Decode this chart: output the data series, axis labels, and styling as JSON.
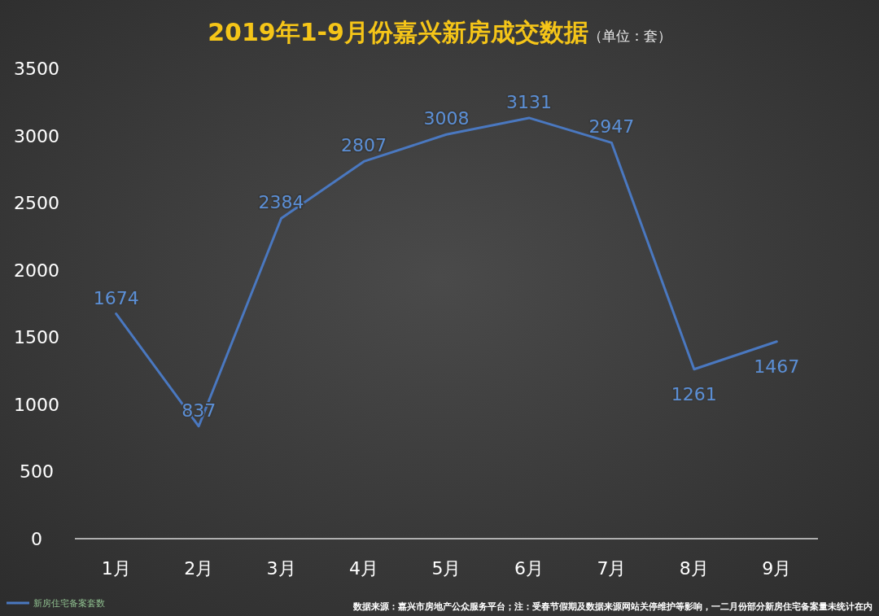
{
  "chart_data": {
    "type": "line",
    "title": "2019年1-9月份嘉兴新房成交数据",
    "subtitle": "（单位：套）",
    "categories": [
      "1月",
      "2月",
      "3月",
      "4月",
      "5月",
      "6月",
      "7月",
      "8月",
      "9月"
    ],
    "series": [
      {
        "name": "新房住宅备案套数",
        "color": "#4a78c0",
        "values": [
          1674,
          837,
          2384,
          2807,
          3008,
          3131,
          2947,
          1261,
          1467
        ]
      }
    ],
    "ylim": [
      0,
      3500
    ],
    "yticks": [
      0,
      500,
      1000,
      1500,
      2000,
      2500,
      3000,
      3500
    ],
    "data_labels": true,
    "grid": false,
    "legend": "bottom left",
    "marker": "none",
    "line_style": "solid",
    "annotations": [
      "数据来源：嘉兴市房地产公众服务平台；注：受春节假期及数据来源网站关停维护等影响，一二月份部分新房住宅备案量未统计在内"
    ]
  }
}
